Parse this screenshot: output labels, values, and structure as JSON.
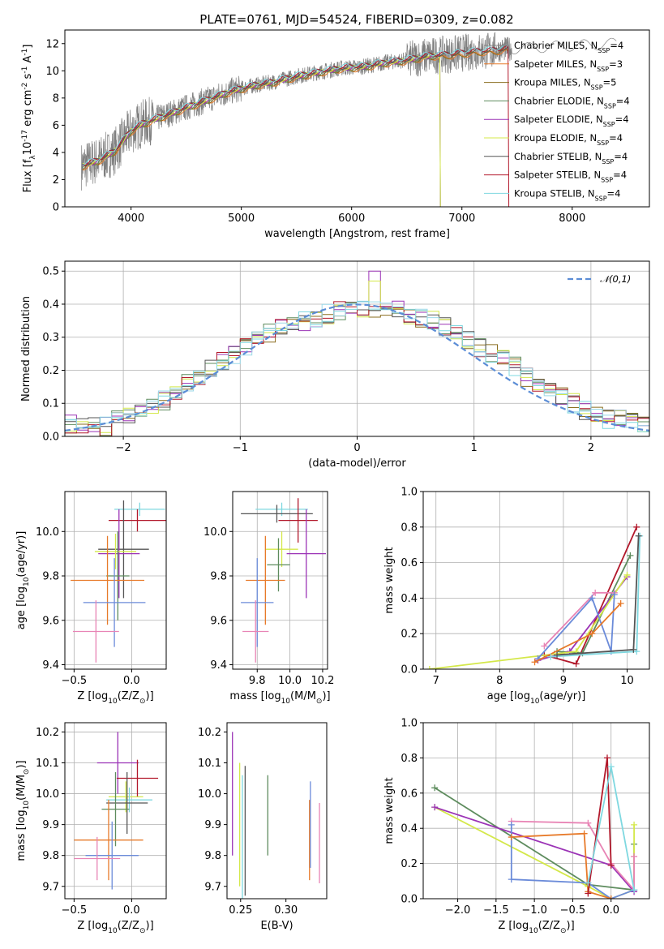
{
  "figure": {
    "title": "PLATE=0761, MJD=54524, FIBERID=0309, z=0.082"
  },
  "colors": [
    "#8a6d1e",
    "#5e8c5e",
    "#9b33b6",
    "#d4e84a",
    "#555555",
    "#b2182b",
    "#7fd8e0",
    "#e77a2a",
    "#6b8bd9",
    "#e884b5"
  ],
  "models": [
    {
      "name": "Chabrier MILES",
      "nssp": 4,
      "color": "#7f7f7f"
    },
    {
      "name": "Salpeter MILES",
      "nssp": 3,
      "color": "#e77a2a"
    },
    {
      "name": "Kroupa MILES",
      "nssp": 5,
      "color": "#8a6d1e"
    },
    {
      "name": "Chabrier ELODIE",
      "nssp": 4,
      "color": "#5e8c5e"
    },
    {
      "name": "Salpeter ELODIE",
      "nssp": 4,
      "color": "#9b33b6"
    },
    {
      "name": "Kroupa ELODIE",
      "nssp": 4,
      "color": "#d4e84a"
    },
    {
      "name": "Chabrier STELIB",
      "nssp": 4,
      "color": "#555555"
    },
    {
      "name": "Salpeter STELIB",
      "nssp": 4,
      "color": "#b2182b"
    },
    {
      "name": "Kroupa STELIB",
      "nssp": 4,
      "color": "#7fd8e0"
    }
  ],
  "chart_data": [
    {
      "id": "spectrum",
      "type": "line",
      "xlabel": "wavelength [Angstrom, rest frame]",
      "ylabel": "Flux [f$_\\lambda$10$^{-17}$ erg cm$^{-2}$ s$^{-1}$ A$^{-1}$]",
      "xlim": [
        3400,
        8700
      ],
      "ylim": [
        0,
        13
      ],
      "xticks": [
        4000,
        5000,
        6000,
        7000,
        8000
      ],
      "yticks": [
        0,
        2,
        4,
        6,
        8,
        10,
        12
      ],
      "continuum_x": [
        3550,
        3700,
        3850,
        4000,
        4100,
        4300,
        4500,
        4700,
        4900,
        5100,
        5300,
        5500,
        5700,
        5900,
        6100,
        6300,
        6500,
        6700,
        6900,
        7100,
        7300,
        7400
      ],
      "continuum_y": [
        3.0,
        3.4,
        4.1,
        5.6,
        6.1,
        6.7,
        7.3,
        7.9,
        8.5,
        8.9,
        9.2,
        9.6,
        9.9,
        10.2,
        10.3,
        10.6,
        10.8,
        11.1,
        11.2,
        11.4,
        11.5,
        11.6
      ]
    },
    {
      "id": "residuals",
      "type": "step",
      "xlabel": "(data-model)/error",
      "ylabel": "Normed distribution",
      "xlim": [
        -2.5,
        2.5
      ],
      "ylim": [
        0,
        0.53
      ],
      "xticks": [
        -2,
        -1,
        0,
        1,
        2
      ],
      "yticks": [
        0,
        0.1,
        0.2,
        0.3,
        0.4,
        0.5
      ],
      "legend": "𝒩(0,1)",
      "bin_width": 0.1,
      "base_values": [
        0.04,
        0.04,
        0.035,
        0.03,
        0.05,
        0.06,
        0.07,
        0.09,
        0.11,
        0.13,
        0.16,
        0.18,
        0.21,
        0.23,
        0.25,
        0.27,
        0.29,
        0.31,
        0.33,
        0.34,
        0.35,
        0.36,
        0.37,
        0.38,
        0.385,
        0.39,
        0.39,
        0.385,
        0.38,
        0.37,
        0.36,
        0.35,
        0.33,
        0.31,
        0.29,
        0.27,
        0.25,
        0.23,
        0.21,
        0.18,
        0.16,
        0.14,
        0.12,
        0.1,
        0.08,
        0.07,
        0.05,
        0.05,
        0.04,
        0.04
      ]
    },
    {
      "id": "age_vs_Z",
      "type": "errorbar",
      "xlabel": "Z [log$_{10}$(Z/Z$_\\odot$)]",
      "ylabel": "age  [log$_{10}$(age/yr)]",
      "xlim": [
        -0.58,
        0.3
      ],
      "ylim": [
        9.38,
        10.18
      ],
      "xticks": [
        -0.5,
        0.0
      ],
      "yticks": [
        9.4,
        9.6,
        9.8,
        10.0
      ],
      "points": [
        {
          "x": 0.07,
          "y": 10.1,
          "dx": 0.22,
          "dy": 0.03,
          "c": "#7fd8e0"
        },
        {
          "x": 0.05,
          "y": 10.05,
          "dx": 0.25,
          "dy": 0.05,
          "c": "#b2182b"
        },
        {
          "x": -0.07,
          "y": 9.92,
          "dx": 0.22,
          "dy": 0.22,
          "c": "#555555"
        },
        {
          "x": -0.11,
          "y": 9.9,
          "dx": 0.18,
          "dy": 0.2,
          "c": "#9b33b6"
        },
        {
          "x": -0.14,
          "y": 9.91,
          "dx": 0.18,
          "dy": 0.08,
          "c": "#d4e84a"
        },
        {
          "x": -0.12,
          "y": 9.8,
          "dx": 0.1,
          "dy": 0.2,
          "c": "#5e8c5e"
        },
        {
          "x": -0.21,
          "y": 9.78,
          "dx": 0.32,
          "dy": 0.2,
          "c": "#e77a2a"
        },
        {
          "x": -0.15,
          "y": 9.68,
          "dx": 0.27,
          "dy": 0.2,
          "c": "#6b8bd9"
        },
        {
          "x": -0.31,
          "y": 9.55,
          "dx": 0.2,
          "dy": 0.14,
          "c": "#e884b5"
        }
      ]
    },
    {
      "id": "age_vs_mass",
      "type": "errorbar",
      "xlabel": "mass [log$_{10}$(M/M$_\\odot$)]",
      "xlim": [
        9.65,
        10.23
      ],
      "ylim": [
        9.38,
        10.18
      ],
      "xticks": [
        9.8,
        10.0,
        10.2
      ],
      "yticks": [
        9.4,
        9.6,
        9.8,
        10.0
      ],
      "points": [
        {
          "x": 9.95,
          "y": 10.1,
          "dx": 0.16,
          "dy": 0.03,
          "c": "#7fd8e0"
        },
        {
          "x": 9.92,
          "y": 10.08,
          "dx": 0.22,
          "dy": 0.04,
          "c": "#555555"
        },
        {
          "x": 10.05,
          "y": 10.05,
          "dx": 0.12,
          "dy": 0.1,
          "c": "#b2182b"
        },
        {
          "x": 10.1,
          "y": 9.9,
          "dx": 0.12,
          "dy": 0.2,
          "c": "#9b33b6"
        },
        {
          "x": 9.95,
          "y": 9.92,
          "dx": 0.1,
          "dy": 0.08,
          "c": "#d4e84a"
        },
        {
          "x": 9.93,
          "y": 9.85,
          "dx": 0.07,
          "dy": 0.12,
          "c": "#5e8c5e"
        },
        {
          "x": 9.85,
          "y": 9.78,
          "dx": 0.12,
          "dy": 0.2,
          "c": "#e77a2a"
        },
        {
          "x": 9.8,
          "y": 9.68,
          "dx": 0.1,
          "dy": 0.2,
          "c": "#6b8bd9"
        },
        {
          "x": 9.79,
          "y": 9.55,
          "dx": 0.08,
          "dy": 0.14,
          "c": "#e884b5"
        }
      ]
    },
    {
      "id": "weight_vs_age",
      "type": "line",
      "xlabel": "age  [log$_{10}$(age/yr)]",
      "ylabel": "mass weight",
      "xlim": [
        6.8,
        10.35
      ],
      "ylim": [
        0,
        1
      ],
      "xticks": [
        7,
        8,
        9,
        10
      ],
      "yticks": [
        0.0,
        0.2,
        0.4,
        0.6,
        0.8,
        1.0
      ],
      "series": [
        {
          "c": "#b2182b",
          "x": [
            8.7,
            9.2,
            10.15
          ],
          "y": [
            0.08,
            0.03,
            0.8
          ]
        },
        {
          "c": "#5e8c5e",
          "x": [
            8.9,
            9.3,
            10.05
          ],
          "y": [
            0.1,
            0.09,
            0.64
          ]
        },
        {
          "c": "#9b33b6",
          "x": [
            8.6,
            9.1,
            10.0
          ],
          "y": [
            0.05,
            0.1,
            0.52
          ]
        },
        {
          "c": "#d4e84a",
          "x": [
            6.9,
            9.2,
            10.0
          ],
          "y": [
            0.0,
            0.1,
            0.53
          ]
        },
        {
          "c": "#e884b5",
          "x": [
            8.7,
            9.5,
            9.8
          ],
          "y": [
            0.13,
            0.43,
            0.43
          ]
        },
        {
          "c": "#6b8bd9",
          "x": [
            8.6,
            9.45,
            9.75,
            9.8
          ],
          "y": [
            0.06,
            0.4,
            0.1,
            0.42
          ]
        },
        {
          "c": "#e77a2a",
          "x": [
            8.55,
            9.45,
            9.9
          ],
          "y": [
            0.04,
            0.2,
            0.37
          ]
        },
        {
          "c": "#7fd8e0",
          "x": [
            8.8,
            10.15,
            10.2
          ],
          "y": [
            0.07,
            0.1,
            0.75
          ]
        },
        {
          "c": "#555555",
          "x": [
            8.9,
            10.1,
            10.18
          ],
          "y": [
            0.08,
            0.11,
            0.75
          ]
        }
      ]
    },
    {
      "id": "mass_vs_Z",
      "type": "errorbar",
      "xlabel": "Z [log$_{10}$(Z/Z$_\\odot$)]",
      "ylabel": "mass [log$_{10}$(M/M$_\\odot$)]",
      "xlim": [
        -0.58,
        0.3
      ],
      "ylim": [
        9.66,
        10.23
      ],
      "xticks": [
        -0.5,
        0.0
      ],
      "yticks": [
        9.7,
        9.8,
        9.9,
        10.0,
        10.1,
        10.2
      ],
      "points": [
        {
          "x": -0.12,
          "y": 10.1,
          "dx": 0.18,
          "dy": 0.1,
          "c": "#9b33b6"
        },
        {
          "x": 0.05,
          "y": 10.05,
          "dx": 0.18,
          "dy": 0.06,
          "c": "#b2182b"
        },
        {
          "x": -0.05,
          "y": 9.99,
          "dx": 0.15,
          "dy": 0.05,
          "c": "#d4e84a"
        },
        {
          "x": -0.02,
          "y": 9.98,
          "dx": 0.2,
          "dy": 0.04,
          "c": "#7fd8e0"
        },
        {
          "x": -0.04,
          "y": 9.97,
          "dx": 0.18,
          "dy": 0.1,
          "c": "#555555"
        },
        {
          "x": -0.14,
          "y": 9.95,
          "dx": 0.12,
          "dy": 0.12,
          "c": "#5e8c5e"
        },
        {
          "x": -0.2,
          "y": 9.85,
          "dx": 0.3,
          "dy": 0.13,
          "c": "#e77a2a"
        },
        {
          "x": -0.17,
          "y": 9.8,
          "dx": 0.23,
          "dy": 0.11,
          "c": "#6b8bd9"
        },
        {
          "x": -0.3,
          "y": 9.79,
          "dx": 0.2,
          "dy": 0.07,
          "c": "#e884b5"
        }
      ]
    },
    {
      "id": "mass_vs_ebv",
      "type": "errorbar",
      "xlabel": "E(B-V)",
      "xlim": [
        0.235,
        0.345
      ],
      "ylim": [
        9.66,
        10.23
      ],
      "xticks": [
        0.25,
        0.3
      ],
      "yticks": [
        9.7,
        9.8,
        9.9,
        10.0,
        10.1,
        10.2
      ],
      "points": [
        {
          "x": 0.241,
          "y": 10.0,
          "dx": 0,
          "dy": 0.2,
          "c": "#9b33b6"
        },
        {
          "x": 0.249,
          "y": 9.9,
          "dx": 0,
          "dy": 0.2,
          "c": "#d4e84a"
        },
        {
          "x": 0.252,
          "y": 9.86,
          "dx": 0,
          "dy": 0.2,
          "c": "#7fd8e0"
        },
        {
          "x": 0.255,
          "y": 9.88,
          "dx": 0,
          "dy": 0.21,
          "c": "#555555"
        },
        {
          "x": 0.28,
          "y": 9.93,
          "dx": 0,
          "dy": 0.13,
          "c": "#5e8c5e"
        },
        {
          "x": 0.326,
          "y": 9.85,
          "dx": 0,
          "dy": 0.13,
          "c": "#e77a2a"
        },
        {
          "x": 0.327,
          "y": 9.9,
          "dx": 0,
          "dy": 0.14,
          "c": "#6b8bd9"
        },
        {
          "x": 0.337,
          "y": 9.84,
          "dx": 0,
          "dy": 0.13,
          "c": "#e884b5"
        }
      ]
    },
    {
      "id": "weight_vs_Z",
      "type": "line",
      "xlabel": "Z [log$_{10}$(Z/Z$_\\odot$)]",
      "ylabel": "mass weight",
      "xlim": [
        -2.45,
        0.5
      ],
      "ylim": [
        0,
        1
      ],
      "xticks": [
        -2.0,
        -1.5,
        -1.0,
        -0.5,
        0.0
      ],
      "yticks": [
        0.0,
        0.2,
        0.4,
        0.6,
        0.8,
        1.0
      ],
      "series": [
        {
          "c": "#5e8c5e",
          "x": [
            -2.3,
            -0.3,
            0.3,
            0.3
          ],
          "y": [
            0.63,
            0.08,
            0.05,
            0.31
          ]
        },
        {
          "c": "#d4e84a",
          "x": [
            -2.3,
            -0.3,
            0.0,
            0.3,
            0.3
          ],
          "y": [
            0.52,
            0.07,
            0.0,
            0.05,
            0.42
          ]
        },
        {
          "c": "#9b33b6",
          "x": [
            -2.3,
            0.0,
            0.3
          ],
          "y": [
            0.52,
            0.19,
            0.04
          ]
        },
        {
          "c": "#e884b5",
          "x": [
            -1.3,
            -0.3,
            0.0,
            0.3,
            0.3
          ],
          "y": [
            0.44,
            0.43,
            0.2,
            0.05,
            0.24
          ]
        },
        {
          "c": "#6b8bd9",
          "x": [
            -1.3,
            -1.3,
            -0.3,
            0.0,
            0.3
          ],
          "y": [
            0.42,
            0.11,
            0.09,
            0.0,
            0.05
          ]
        },
        {
          "c": "#e77a2a",
          "x": [
            -1.3,
            -0.35,
            -0.3,
            0.0
          ],
          "y": [
            0.35,
            0.37,
            0.04,
            0.0
          ]
        },
        {
          "c": "#b2182b",
          "x": [
            -0.3,
            -0.05,
            0.0
          ],
          "y": [
            0.03,
            0.8,
            0.19
          ]
        },
        {
          "c": "#7fd8e0",
          "x": [
            -0.3,
            0.0,
            0.3
          ],
          "y": [
            0.09,
            0.75,
            0.05
          ]
        }
      ]
    }
  ]
}
